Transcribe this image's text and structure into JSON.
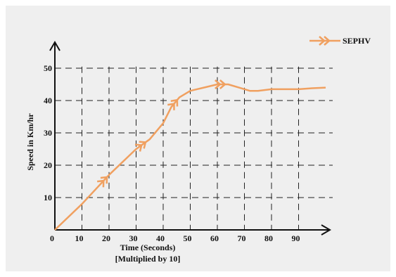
{
  "colors": {
    "background": "#efefef",
    "series": "#f0a060",
    "grid": "#222222",
    "axis": "#111111"
  },
  "chart_data": {
    "type": "line",
    "xlabel": "Time (Seconds)",
    "xlabel_note": "[Multiplied by 10]",
    "ylabel": "Speed in Km/hr",
    "xlim": [
      0,
      100
    ],
    "ylim": [
      0,
      55
    ],
    "x_ticks": [
      0,
      10,
      20,
      30,
      40,
      50,
      60,
      70,
      80,
      90
    ],
    "y_ticks": [
      10,
      20,
      30,
      40,
      50
    ],
    "grid": true,
    "grid_style": "dashed",
    "legend_position": "top-right",
    "series": [
      {
        "name": "SEPHV",
        "x": [
          0,
          10,
          20,
          30,
          35,
          40,
          43,
          46,
          50,
          55,
          60,
          64,
          68,
          72,
          75,
          80,
          85,
          90,
          95,
          100
        ],
        "y": [
          0,
          8,
          17,
          25,
          28,
          33,
          38,
          41,
          43,
          44,
          45,
          45,
          44,
          43,
          43,
          43.5,
          43.5,
          43.5,
          43.8,
          44
        ],
        "markers_at_x": [
          18,
          32,
          44,
          61
        ]
      }
    ]
  }
}
